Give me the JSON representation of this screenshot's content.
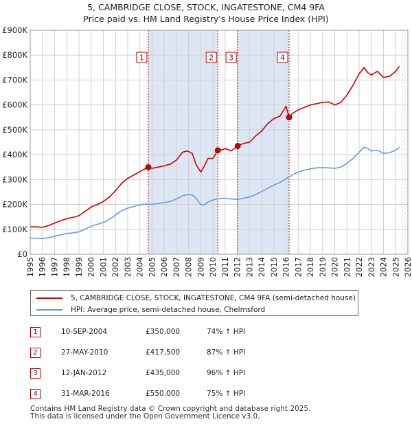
{
  "title": {
    "line1": "5, CAMBRIDGE CLOSE, STOCK, INGATESTONE, CM4 9FA",
    "line2": "Price paid vs. HM Land Registry's House Price Index (HPI)"
  },
  "colors": {
    "property": "#cc0000",
    "hpi": "#6a9bd1",
    "shade": "#dde6f5",
    "marker_border": "#cc0000",
    "grid": "#d0d0d0"
  },
  "chart_data": {
    "type": "line",
    "title": "Price paid vs. HM Land Registry's House Price Index (HPI)",
    "xlabel": "",
    "ylabel": "",
    "xlim": [
      1995,
      2026
    ],
    "ylim": [
      0,
      900000
    ],
    "x_ticks": [
      1995,
      1996,
      1997,
      1998,
      1999,
      2000,
      2001,
      2002,
      2003,
      2004,
      2005,
      2006,
      2007,
      2008,
      2009,
      2010,
      2011,
      2012,
      2013,
      2014,
      2015,
      2016,
      2017,
      2018,
      2019,
      2020,
      2021,
      2022,
      2023,
      2024,
      2025,
      2026
    ],
    "y_ticks": [
      0,
      100000,
      200000,
      300000,
      400000,
      500000,
      600000,
      700000,
      800000,
      900000
    ],
    "y_tick_labels": [
      "£0",
      "£100K",
      "£200K",
      "£300K",
      "£400K",
      "£500K",
      "£600K",
      "£700K",
      "£800K",
      "£900K"
    ],
    "grid": true,
    "shaded_ranges": [
      [
        2004.69,
        2010.4
      ],
      [
        2012.03,
        2016.25
      ]
    ],
    "sale_vlines": [
      2004.69,
      2010.4,
      2012.03,
      2016.25
    ],
    "series": [
      {
        "name": "5, CAMBRIDGE CLOSE, STOCK, INGATESTONE, CM4 9FA (semi-detached house)",
        "x": [
          1995,
          1995.5,
          1996,
          1996.5,
          1997,
          1997.5,
          1998,
          1998.5,
          1999,
          1999.5,
          2000,
          2000.5,
          2001,
          2001.5,
          2002,
          2002.5,
          2003,
          2003.5,
          2004,
          2004.5,
          2004.69,
          2005,
          2005.5,
          2006,
          2006.5,
          2007,
          2007.5,
          2007.9,
          2008.3,
          2008.6,
          2009,
          2009.3,
          2009.6,
          2010,
          2010.4,
          2010.8,
          2011,
          2011.5,
          2012.03,
          2012.5,
          2013,
          2013.5,
          2014,
          2014.5,
          2015,
          2015.5,
          2016,
          2016.25,
          2016.5,
          2017,
          2017.5,
          2018,
          2018.5,
          2019,
          2019.5,
          2020,
          2020.5,
          2021,
          2021.5,
          2022,
          2022.4,
          2022.7,
          2023,
          2023.5,
          2024,
          2024.5,
          2025,
          2025.3
        ],
        "values": [
          110000,
          110000,
          108000,
          115000,
          125000,
          135000,
          143000,
          148000,
          155000,
          172000,
          190000,
          200000,
          212000,
          230000,
          255000,
          285000,
          305000,
          318000,
          332000,
          345000,
          350000,
          345000,
          350000,
          355000,
          362000,
          378000,
          410000,
          415000,
          405000,
          362000,
          330000,
          355000,
          385000,
          385000,
          417500,
          420000,
          425000,
          415000,
          435000,
          445000,
          450000,
          475000,
          495000,
          525000,
          545000,
          555000,
          595000,
          550000,
          565000,
          580000,
          590000,
          600000,
          605000,
          610000,
          612000,
          600000,
          610000,
          640000,
          680000,
          725000,
          750000,
          730000,
          720000,
          735000,
          710000,
          715000,
          735000,
          755000
        ]
      },
      {
        "name": "HPI: Average price, semi-detached house, Chelmsford",
        "x": [
          1995,
          1995.5,
          1996,
          1996.5,
          1997,
          1997.5,
          1998,
          1998.5,
          1999,
          1999.5,
          2000,
          2000.5,
          2001,
          2001.5,
          2002,
          2002.5,
          2003,
          2003.5,
          2004,
          2004.5,
          2005,
          2005.5,
          2006,
          2006.5,
          2007,
          2007.5,
          2007.9,
          2008.3,
          2008.6,
          2009,
          2009.3,
          2009.6,
          2010,
          2010.5,
          2011,
          2011.5,
          2012,
          2012.5,
          2013,
          2013.5,
          2014,
          2014.5,
          2015,
          2015.5,
          2016,
          2016.5,
          2017,
          2017.5,
          2018,
          2018.5,
          2019,
          2019.5,
          2020,
          2020.5,
          2021,
          2021.5,
          2022,
          2022.4,
          2022.7,
          2023,
          2023.5,
          2024,
          2024.5,
          2025,
          2025.3
        ],
        "values": [
          65000,
          64000,
          63000,
          66000,
          72000,
          78000,
          83000,
          86000,
          90000,
          100000,
          112000,
          120000,
          128000,
          140000,
          158000,
          175000,
          185000,
          192000,
          198000,
          202000,
          200000,
          204000,
          207000,
          212000,
          222000,
          235000,
          240000,
          238000,
          225000,
          200000,
          198000,
          210000,
          218000,
          223000,
          225000,
          222000,
          220000,
          225000,
          230000,
          240000,
          252000,
          265000,
          278000,
          288000,
          303000,
          318000,
          330000,
          338000,
          343000,
          347000,
          348000,
          347000,
          345000,
          350000,
          365000,
          385000,
          410000,
          430000,
          425000,
          415000,
          418000,
          405000,
          408000,
          418000,
          430000
        ]
      }
    ],
    "sales": [
      {
        "n": "1",
        "x": 2004.69,
        "y": 350000
      },
      {
        "n": "2",
        "x": 2010.4,
        "y": 417500
      },
      {
        "n": "3",
        "x": 2012.03,
        "y": 435000
      },
      {
        "n": "4",
        "x": 2016.25,
        "y": 550000
      }
    ]
  },
  "legend": {
    "property_label": "5, CAMBRIDGE CLOSE, STOCK, INGATESTONE, CM4 9FA (semi-detached house)",
    "hpi_label": "HPI: Average price, semi-detached house, Chelmsford"
  },
  "sales_table": [
    {
      "n": "1",
      "date": "10-SEP-2004",
      "price": "£350,000",
      "hpi": "74% ↑ HPI"
    },
    {
      "n": "2",
      "date": "27-MAY-2010",
      "price": "£417,500",
      "hpi": "87% ↑ HPI"
    },
    {
      "n": "3",
      "date": "12-JAN-2012",
      "price": "£435,000",
      "hpi": "96% ↑ HPI"
    },
    {
      "n": "4",
      "date": "31-MAR-2016",
      "price": "£550,000",
      "hpi": "75% ↑ HPI"
    }
  ],
  "footer": {
    "line1": "Contains HM Land Registry data © Crown copyright and database right 2025.",
    "line2": "This data is licensed under the Open Government Licence v3.0."
  }
}
